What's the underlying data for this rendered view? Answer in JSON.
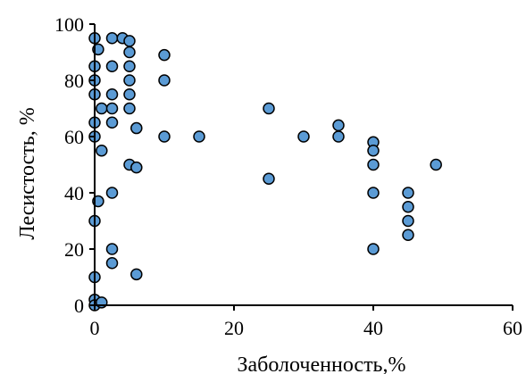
{
  "chart_data": {
    "type": "scatter",
    "title": "",
    "xlabel": "Заболоченность,%",
    "ylabel": "Лесистость, %",
    "xlim": [
      0,
      60
    ],
    "ylim": [
      0,
      100
    ],
    "xticks": [
      0,
      20,
      40,
      60
    ],
    "yticks": [
      0,
      20,
      40,
      60,
      80,
      100
    ],
    "grid": false,
    "legend": "none",
    "marker_color": "#5b9bd5",
    "marker_edge_color": "#000000",
    "series": [
      {
        "x": [
          0,
          0,
          0,
          0,
          0,
          0,
          0,
          0,
          0,
          0,
          0.5,
          0.5,
          1,
          1,
          1,
          2.5,
          2.5,
          2.5,
          2.5,
          2.5,
          2.5,
          2.5,
          2.5,
          4,
          5,
          5,
          5,
          5,
          5,
          5,
          5,
          6,
          6,
          6,
          10,
          10,
          10,
          15,
          25,
          25,
          30,
          35,
          35,
          40,
          40,
          40,
          40,
          40,
          45,
          45,
          45,
          45,
          49
        ],
        "y": [
          95,
          85,
          80,
          75,
          65,
          60,
          30,
          10,
          2,
          0,
          91,
          37,
          70,
          55,
          1,
          95,
          85,
          75,
          70,
          65,
          40,
          20,
          15,
          95,
          94,
          90,
          85,
          80,
          75,
          70,
          50,
          63,
          49,
          11,
          89,
          80,
          60,
          60,
          70,
          45,
          60,
          64,
          60,
          58,
          55,
          50,
          40,
          20,
          40,
          35,
          30,
          25,
          50
        ]
      }
    ]
  }
}
